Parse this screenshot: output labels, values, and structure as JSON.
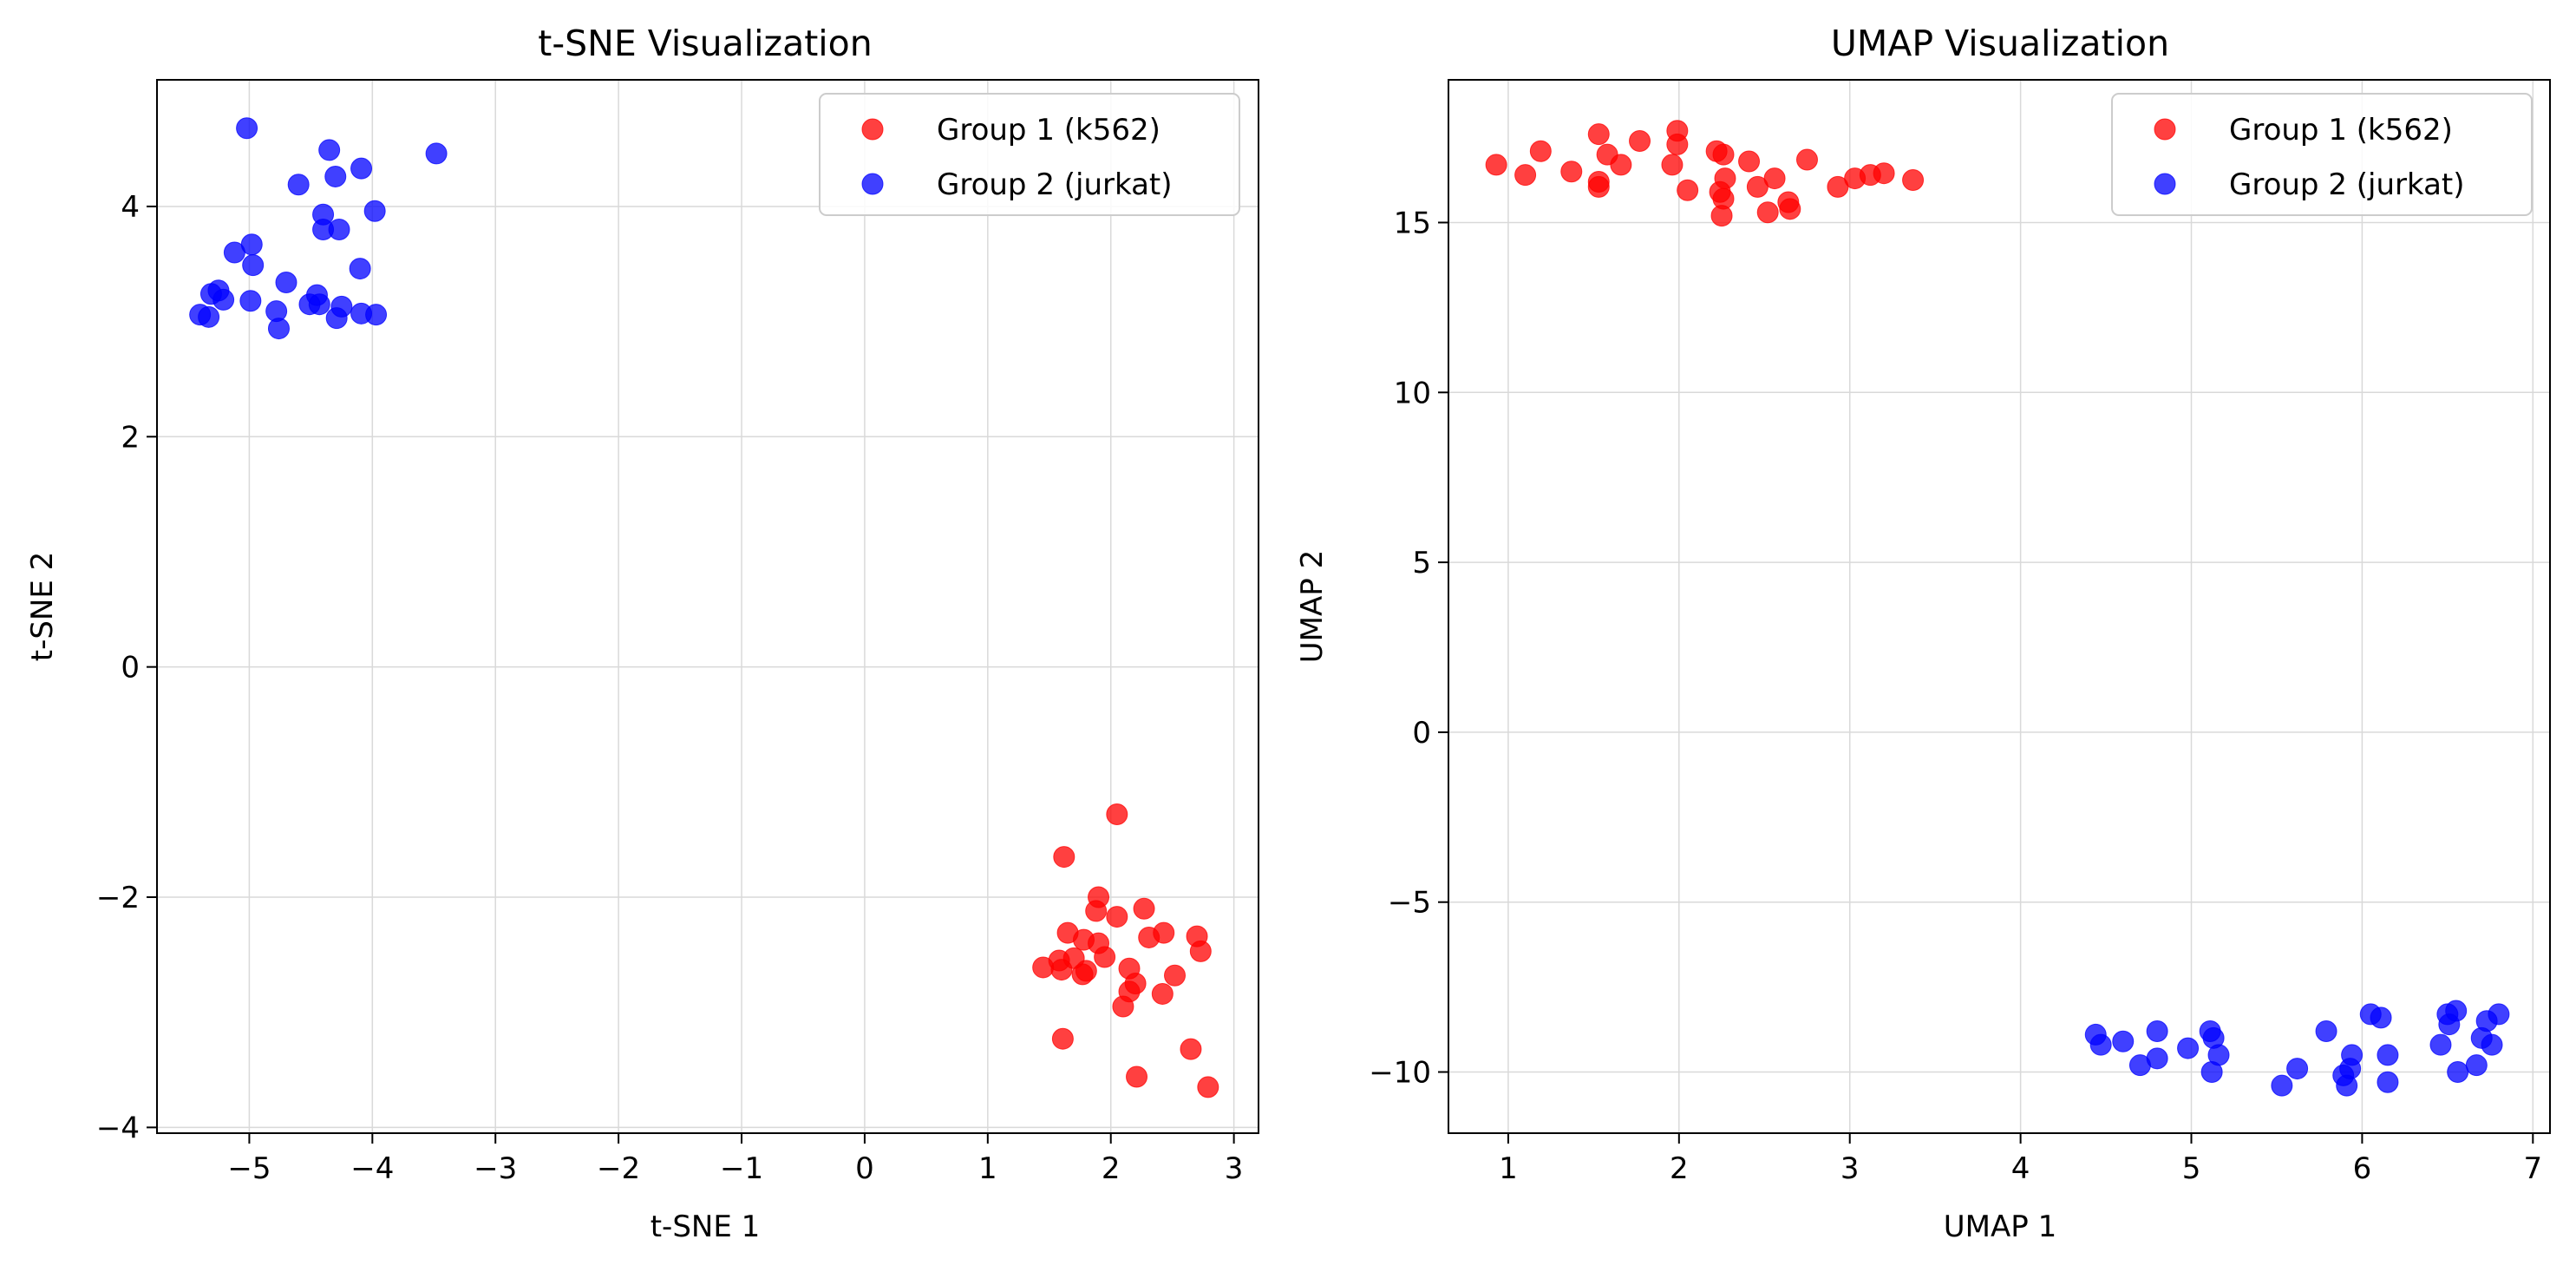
{
  "colors": {
    "group1": "#ff0000",
    "group2": "#0000ff",
    "grid": "#d9d9d9",
    "axes": "#000000",
    "legend_border": "#cccccc"
  },
  "chart_data": [
    {
      "type": "scatter",
      "title": "t-SNE Visualization",
      "xlabel": "t-SNE 1",
      "ylabel": "t-SNE 2",
      "xlim": [
        -5.75,
        3.2
      ],
      "ylim": [
        -4.05,
        5.1
      ],
      "xticks": [
        -5,
        -4,
        -3,
        -2,
        -1,
        0,
        1,
        2,
        3
      ],
      "xtick_labels": [
        "−5",
        "−4",
        "−3",
        "−2",
        "−1",
        "0",
        "1",
        "2",
        "3"
      ],
      "yticks": [
        -4,
        -2,
        0,
        2,
        4
      ],
      "ytick_labels": [
        "−4",
        "−2",
        "0",
        "2",
        "4"
      ],
      "grid": true,
      "legend_position": "top-right",
      "series": [
        {
          "name": "Group 1 (k562)",
          "color": "#ff0000",
          "points": [
            [
              2.05,
              -1.28
            ],
            [
              1.62,
              -1.65
            ],
            [
              1.9,
              -2.0
            ],
            [
              2.27,
              -2.1
            ],
            [
              1.88,
              -2.12
            ],
            [
              2.05,
              -2.17
            ],
            [
              1.65,
              -2.31
            ],
            [
              2.43,
              -2.31
            ],
            [
              2.7,
              -2.34
            ],
            [
              1.78,
              -2.37
            ],
            [
              2.31,
              -2.35
            ],
            [
              1.9,
              -2.4
            ],
            [
              2.73,
              -2.47
            ],
            [
              1.58,
              -2.55
            ],
            [
              1.7,
              -2.53
            ],
            [
              1.95,
              -2.52
            ],
            [
              1.45,
              -2.61
            ],
            [
              1.6,
              -2.63
            ],
            [
              1.8,
              -2.64
            ],
            [
              1.77,
              -2.67
            ],
            [
              2.15,
              -2.62
            ],
            [
              2.52,
              -2.68
            ],
            [
              2.2,
              -2.75
            ],
            [
              2.15,
              -2.82
            ],
            [
              2.42,
              -2.84
            ],
            [
              2.1,
              -2.95
            ],
            [
              1.61,
              -3.23
            ],
            [
              2.65,
              -3.32
            ],
            [
              2.21,
              -3.56
            ],
            [
              2.79,
              -3.65
            ]
          ]
        },
        {
          "name": "Group 2 (jurkat)",
          "color": "#0000ff",
          "points": [
            [
              -5.02,
              4.68
            ],
            [
              -3.48,
              4.46
            ],
            [
              -4.35,
              4.49
            ],
            [
              -4.09,
              4.33
            ],
            [
              -4.3,
              4.26
            ],
            [
              -4.6,
              4.19
            ],
            [
              -3.98,
              3.96
            ],
            [
              -4.4,
              3.93
            ],
            [
              -4.4,
              3.8
            ],
            [
              -4.27,
              3.8
            ],
            [
              -4.98,
              3.67
            ],
            [
              -5.12,
              3.6
            ],
            [
              -4.97,
              3.49
            ],
            [
              -4.1,
              3.46
            ],
            [
              -4.7,
              3.34
            ],
            [
              -5.25,
              3.27
            ],
            [
              -5.31,
              3.24
            ],
            [
              -4.45,
              3.23
            ],
            [
              -5.21,
              3.19
            ],
            [
              -4.99,
              3.18
            ],
            [
              -4.51,
              3.15
            ],
            [
              -4.43,
              3.15
            ],
            [
              -4.25,
              3.13
            ],
            [
              -4.78,
              3.09
            ],
            [
              -4.09,
              3.07
            ],
            [
              -3.97,
              3.06
            ],
            [
              -5.4,
              3.06
            ],
            [
              -5.33,
              3.04
            ],
            [
              -4.29,
              3.03
            ],
            [
              -4.76,
              2.94
            ]
          ]
        }
      ]
    },
    {
      "type": "scatter",
      "title": "UMAP Visualization",
      "xlabel": "UMAP 1",
      "ylabel": "UMAP 2",
      "xlim": [
        0.65,
        7.1
      ],
      "ylim": [
        -11.8,
        19.2
      ],
      "xticks": [
        1,
        2,
        3,
        4,
        5,
        6,
        7
      ],
      "xtick_labels": [
        "1",
        "2",
        "3",
        "4",
        "5",
        "6",
        "7"
      ],
      "yticks": [
        -10,
        -5,
        0,
        5,
        10,
        15
      ],
      "ytick_labels": [
        "−10",
        "−5",
        "0",
        "5",
        "10",
        "15"
      ],
      "grid": true,
      "legend_position": "top-right",
      "series": [
        {
          "name": "Group 1 (k562)",
          "color": "#ff0000",
          "points": [
            [
              0.93,
              16.7
            ],
            [
              1.1,
              16.4
            ],
            [
              1.19,
              17.1
            ],
            [
              1.37,
              16.5
            ],
            [
              1.53,
              17.6
            ],
            [
              1.53,
              16.2
            ],
            [
              1.53,
              16.05
            ],
            [
              1.58,
              17.0
            ],
            [
              1.66,
              16.7
            ],
            [
              1.77,
              17.4
            ],
            [
              1.96,
              16.7
            ],
            [
              1.99,
              17.7
            ],
            [
              1.99,
              17.3
            ],
            [
              2.05,
              15.95
            ],
            [
              2.22,
              17.1
            ],
            [
              2.26,
              17.0
            ],
            [
              2.27,
              16.3
            ],
            [
              2.24,
              15.9
            ],
            [
              2.26,
              15.7
            ],
            [
              2.25,
              15.2
            ],
            [
              2.41,
              16.8
            ],
            [
              2.46,
              16.05
            ],
            [
              2.52,
              15.3
            ],
            [
              2.56,
              16.3
            ],
            [
              2.64,
              15.6
            ],
            [
              2.65,
              15.4
            ],
            [
              2.75,
              16.85
            ],
            [
              2.93,
              16.05
            ],
            [
              3.03,
              16.3
            ],
            [
              3.12,
              16.4
            ],
            [
              3.2,
              16.45
            ],
            [
              3.37,
              16.25
            ]
          ]
        },
        {
          "name": "Group 2 (jurkat)",
          "color": "#0000ff",
          "points": [
            [
              4.44,
              -8.9
            ],
            [
              4.47,
              -9.2
            ],
            [
              4.6,
              -9.1
            ],
            [
              4.7,
              -9.8
            ],
            [
              4.8,
              -8.8
            ],
            [
              4.8,
              -9.6
            ],
            [
              4.98,
              -9.3
            ],
            [
              5.11,
              -8.8
            ],
            [
              5.13,
              -9.0
            ],
            [
              5.16,
              -9.5
            ],
            [
              5.12,
              -10.0
            ],
            [
              5.53,
              -10.4
            ],
            [
              5.62,
              -9.9
            ],
            [
              5.79,
              -8.8
            ],
            [
              5.89,
              -10.1
            ],
            [
              5.91,
              -10.4
            ],
            [
              5.93,
              -9.9
            ],
            [
              5.94,
              -9.5
            ],
            [
              6.05,
              -8.3
            ],
            [
              6.11,
              -8.4
            ],
            [
              6.15,
              -9.5
            ],
            [
              6.15,
              -10.3
            ],
            [
              6.46,
              -9.2
            ],
            [
              6.5,
              -8.3
            ],
            [
              6.51,
              -8.6
            ],
            [
              6.55,
              -8.2
            ],
            [
              6.56,
              -10.0
            ],
            [
              6.67,
              -9.8
            ],
            [
              6.7,
              -9.0
            ],
            [
              6.73,
              -8.5
            ],
            [
              6.76,
              -9.2
            ],
            [
              6.8,
              -8.3
            ]
          ]
        }
      ]
    }
  ]
}
